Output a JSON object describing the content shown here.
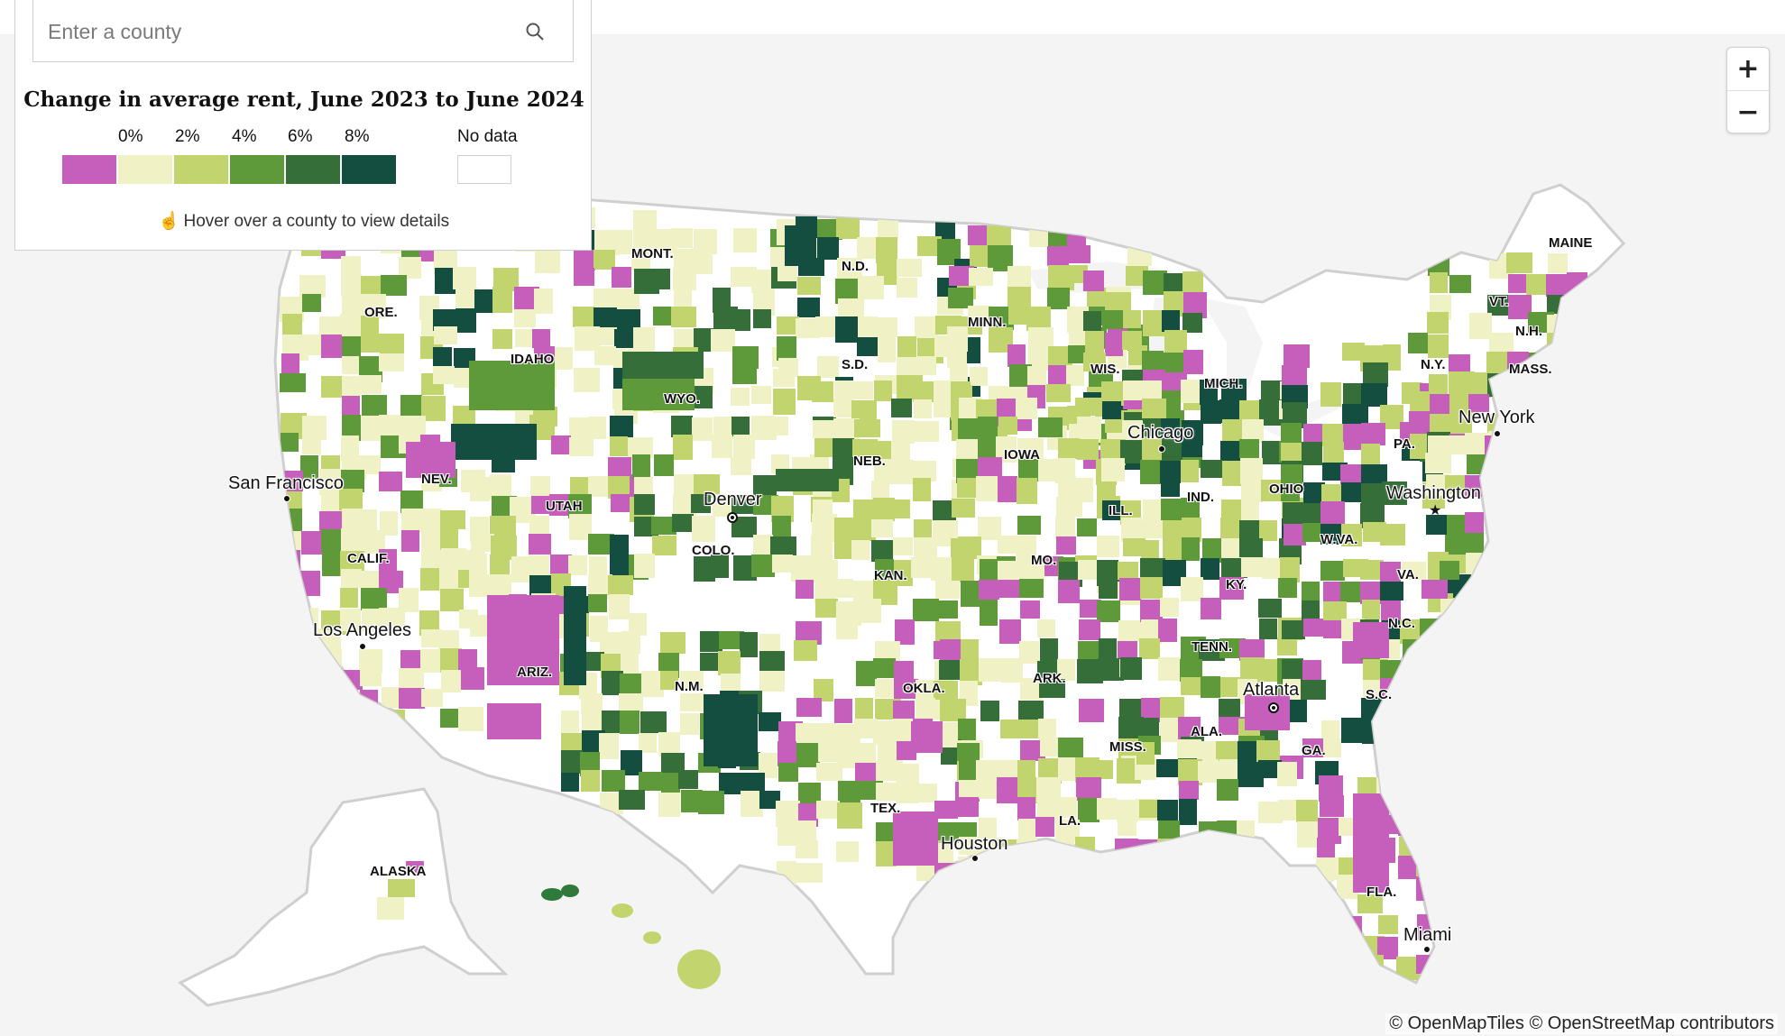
{
  "search": {
    "placeholder": "Enter a county"
  },
  "legend": {
    "title": "Change in average rent, June 2023 to June 2024",
    "ticks": [
      "0%",
      "2%",
      "4%",
      "6%",
      "8%"
    ],
    "colors": [
      "#c65fbb",
      "#f0f1c4",
      "#c2d46e",
      "#5e9a3a",
      "#356e38",
      "#134e41"
    ],
    "no_data_label": "No data",
    "no_data_color": "#ffffff",
    "hint": "Hover over a county to view details"
  },
  "zoom": {
    "in_label": "+",
    "out_label": "−"
  },
  "attribution": "© OpenMapTiles © OpenStreetMap contributors",
  "cities": [
    "San Francisco",
    "Los Angeles",
    "Denver",
    "Chicago",
    "Houston",
    "Atlanta",
    "Miami",
    "New York",
    "Washington"
  ],
  "states": [
    "MONT.",
    "N.D.",
    "ORE.",
    "IDAHO",
    "S.D.",
    "MINN.",
    "WYO.",
    "WIS.",
    "MICH.",
    "NEB.",
    "IOWA",
    "NEV.",
    "UTAH",
    "COLO.",
    "ILL.",
    "IND.",
    "OHIO",
    "PA.",
    "CALIF.",
    "KAN.",
    "MO.",
    "KY.",
    "W.VA.",
    "VA.",
    "N.C.",
    "TENN.",
    "OKLA.",
    "ARK.",
    "ARIZ.",
    "N.M.",
    "MISS.",
    "ALA.",
    "GA.",
    "S.C.",
    "TEX.",
    "LA.",
    "FLA.",
    "MAINE",
    "VT.",
    "N.H.",
    "N.Y.",
    "MASS.",
    "ALASKA"
  ]
}
